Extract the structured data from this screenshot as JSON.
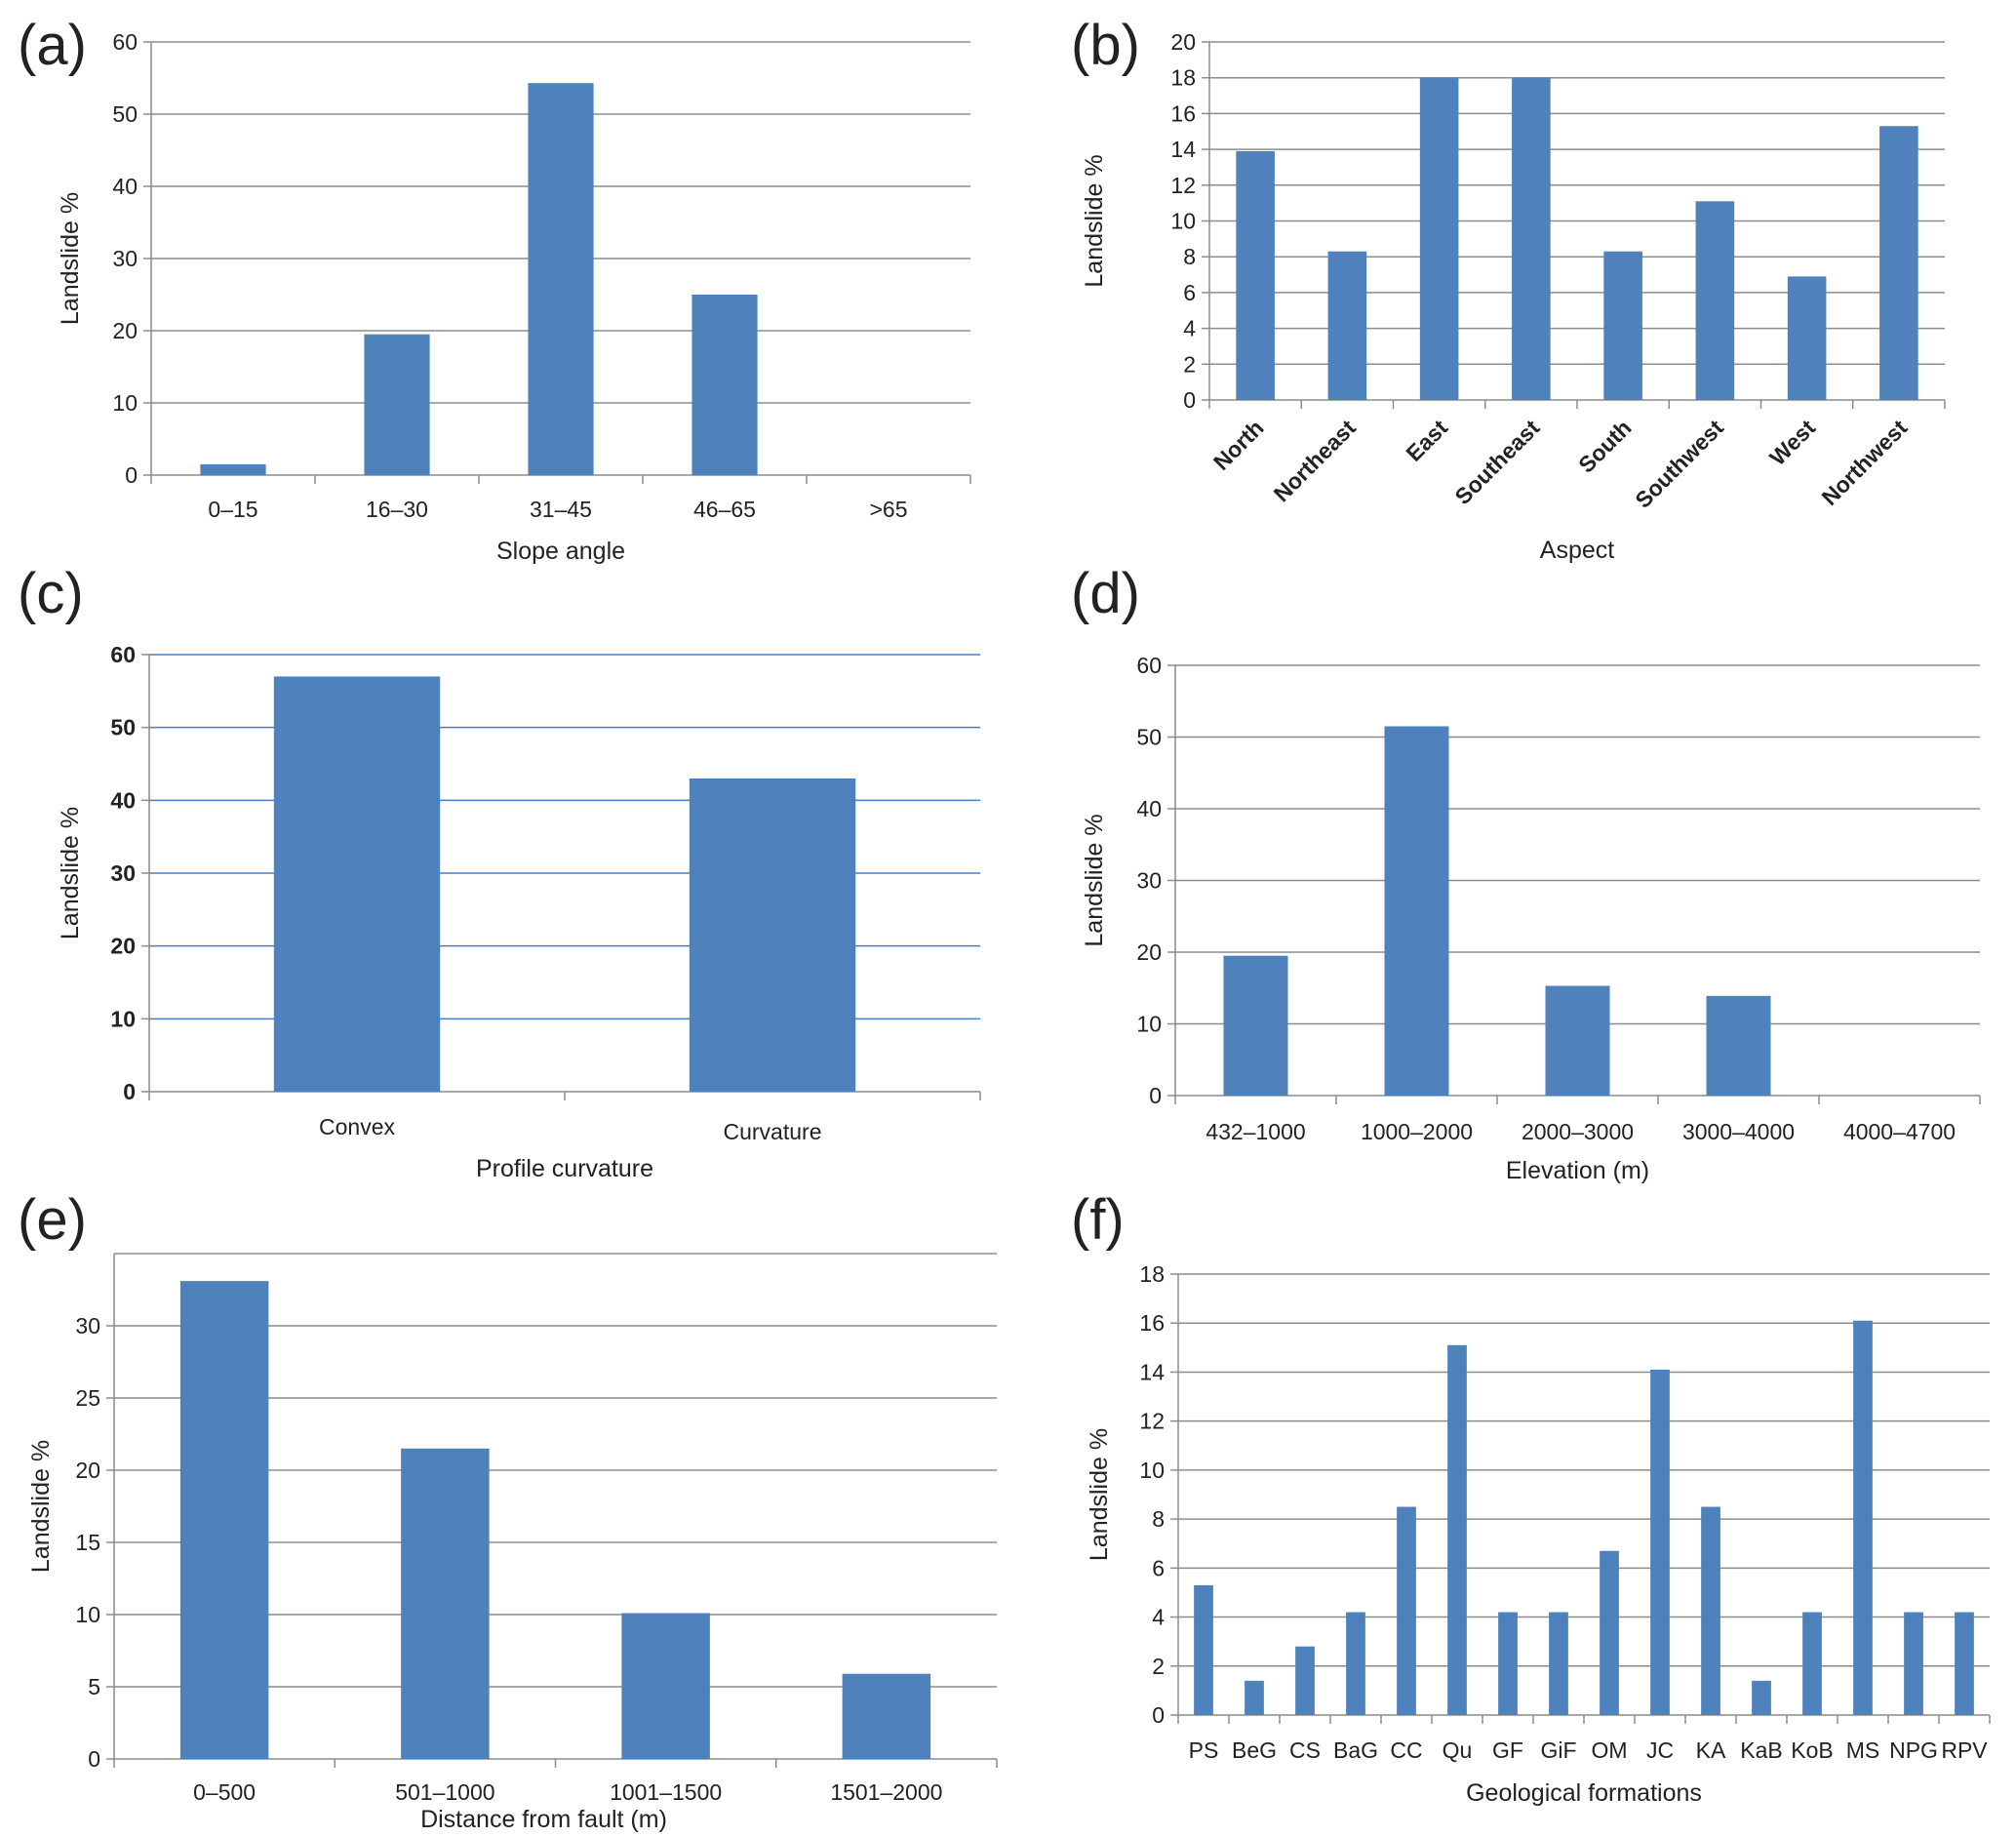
{
  "colors": {
    "bar": "#4F81BD",
    "grid": "#8c8c8c",
    "grid_blue": "#4a7ebb",
    "axis": "#8c8c8c",
    "text": "#222222"
  },
  "chart_data": [
    {
      "id": "a",
      "panel_label": "(a)",
      "type": "bar",
      "categories": [
        "0–15",
        "16–30",
        "31–45",
        "46–65",
        ">65"
      ],
      "values": [
        1.5,
        19.5,
        54.3,
        25,
        0
      ],
      "xlabel": "Slope angle",
      "ylabel": "Landslide %",
      "ylim": [
        0,
        60
      ],
      "yticks": [
        "0",
        "10",
        "20",
        "30",
        "40",
        "50",
        "60"
      ],
      "grid": true
    },
    {
      "id": "b",
      "panel_label": "(b)",
      "type": "bar",
      "categories": [
        "North",
        "Northeast",
        "East",
        "Southeast",
        "South",
        "Southwest",
        "West",
        "Northwest"
      ],
      "values": [
        13.9,
        8.3,
        18,
        18,
        8.3,
        11.1,
        6.9,
        15.3
      ],
      "xlabel": "Aspect",
      "ylabel": "Landslide %",
      "ylim": [
        0,
        20
      ],
      "yticks": [
        "0",
        "2",
        "4",
        "6",
        "8",
        "10",
        "12",
        "14",
        "16",
        "18",
        "20"
      ],
      "grid": true
    },
    {
      "id": "c",
      "panel_label": "(c)",
      "type": "bar",
      "categories": [
        "Convex",
        "Curvature"
      ],
      "values": [
        57,
        43
      ],
      "xlabel": "Profile curvature",
      "ylabel": "Landslide %",
      "ylim": [
        0,
        60
      ],
      "yticks": [
        "0",
        "10",
        "20",
        "30",
        "40",
        "50",
        "60"
      ],
      "grid": true
    },
    {
      "id": "d",
      "panel_label": "(d)",
      "type": "bar",
      "categories": [
        "432–1000",
        "1000–2000",
        "2000–3000",
        "3000–4000",
        "4000–4700"
      ],
      "values": [
        19.5,
        51.5,
        15.3,
        13.9,
        0
      ],
      "xlabel": "Elevation (m)",
      "ylabel": "Landslide %",
      "ylim": [
        0,
        60
      ],
      "yticks": [
        "0",
        "10",
        "20",
        "30",
        "40",
        "50",
        "60"
      ],
      "grid": true
    },
    {
      "id": "e",
      "panel_label": "(e)",
      "type": "bar",
      "categories": [
        "0–500",
        "501–1000",
        "1001–1500",
        "1501–2000"
      ],
      "values": [
        33.1,
        21.5,
        10.1,
        5.9
      ],
      "xlabel": "Distance from fault (m)",
      "ylabel": "Landslide %",
      "ylim": [
        0,
        35
      ],
      "yticks": [
        "0",
        "5",
        "10",
        "15",
        "20",
        "25",
        "30"
      ],
      "grid": true
    },
    {
      "id": "f",
      "panel_label": "(f)",
      "type": "bar",
      "categories": [
        "PS",
        "BeG",
        "CS",
        "BaG",
        "CC",
        "Qu",
        "GF",
        "GiF",
        "OM",
        "JC",
        "KA",
        "KaB",
        "KoB",
        "MS",
        "NPG",
        "RPV"
      ],
      "values": [
        5.3,
        1.4,
        2.8,
        4.2,
        8.5,
        15.1,
        4.2,
        4.2,
        6.7,
        14.1,
        8.5,
        1.4,
        4.2,
        16.1,
        4.2,
        4.2
      ],
      "xlabel": "Geological formations",
      "ylabel": "Landslide %",
      "ylim": [
        0,
        18
      ],
      "yticks": [
        "0",
        "2",
        "4",
        "6",
        "8",
        "10",
        "12",
        "14",
        "16",
        "18"
      ],
      "grid": true
    }
  ]
}
